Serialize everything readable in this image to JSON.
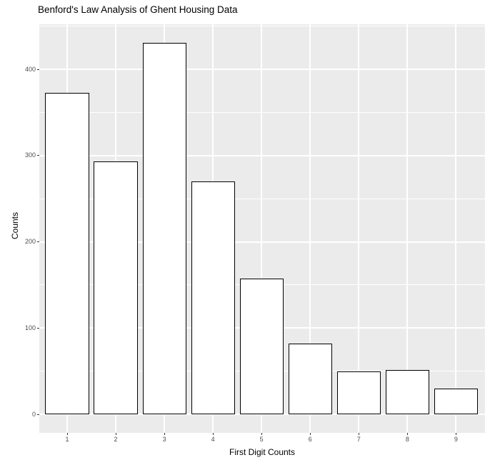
{
  "chart_data": {
    "type": "bar",
    "title": "Benford's Law Analysis of Ghent Housing Data",
    "xlabel": "First Digit Counts",
    "ylabel": "Counts",
    "categories": [
      "1",
      "2",
      "3",
      "4",
      "5",
      "6",
      "7",
      "8",
      "9"
    ],
    "values": [
      373,
      293,
      431,
      270,
      157,
      82,
      50,
      51,
      30
    ],
    "ylim": [
      0,
      450
    ],
    "y_major_ticks": [
      0,
      100,
      200,
      300,
      400
    ],
    "y_tick_labels": [
      "0",
      "100",
      "200",
      "300",
      "400"
    ],
    "y_minor_gridlines": [
      50,
      150,
      250,
      350,
      450
    ],
    "grid": "on",
    "legend": "none",
    "colors": {
      "panel_bg": "#EBEBEB",
      "plot_bg": "#FFFFFF",
      "grid_color": "#FFFFFF",
      "bar_fill": "#FFFFFF",
      "bar_border": "#000000",
      "tick_mark_color": "#333333",
      "tick_label_color": "#4D4D4D",
      "axis_title_color": "#000000",
      "title_color": "#000000"
    }
  }
}
